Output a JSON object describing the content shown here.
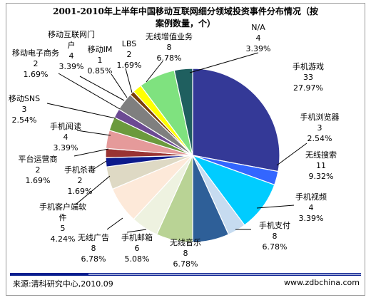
{
  "chart_data": {
    "type": "pie",
    "title_lines": [
      "2001-2010年上半年中国移动互联网细分领域投资事件分布情况（按",
      "案例数量，个）"
    ],
    "slices": [
      {
        "name": "手机游戏",
        "value": 33,
        "percent": "27.97%",
        "color": "#343997"
      },
      {
        "name": "手机浏览器",
        "value": 3,
        "percent": "2.54%",
        "color": "#3366ff"
      },
      {
        "name": "无线搜索",
        "value": 11,
        "percent": "9.32%",
        "color": "#00ccff"
      },
      {
        "name": "手机视频",
        "value": 4,
        "percent": "3.39%",
        "color": "#c6dbf0"
      },
      {
        "name": "手机支付",
        "value": 8,
        "percent": "6.78%",
        "color": "#2e5f98"
      },
      {
        "name": "无线音乐",
        "value": 8,
        "percent": "6.78%",
        "color": "#b9d395"
      },
      {
        "name": "手机邮箱",
        "value": 6,
        "percent": "5.08%",
        "color": "#eef2e0"
      },
      {
        "name": "无线广告",
        "value": 8,
        "percent": "6.78%",
        "color": "#fde9d9"
      },
      {
        "name": "手机客户端软件",
        "value": 5,
        "percent": "4.24%",
        "color": "#ded9c4"
      },
      {
        "name": "手机杀毒",
        "value": 2,
        "percent": "1.69%",
        "color": "#0c1a8c"
      },
      {
        "name": "平台运营商",
        "value": 2,
        "percent": "1.69%",
        "color": "#993333"
      },
      {
        "name": "手机阅读",
        "value": 4,
        "percent": "3.39%",
        "color": "#e59a9a"
      },
      {
        "name": "移动SNS",
        "value": 3,
        "percent": "2.54%",
        "color": "#6b9a3d"
      },
      {
        "name": "移动电子商务",
        "value": 2,
        "percent": "1.69%",
        "color": "#6c4a93"
      },
      {
        "name": "移动互联网门户",
        "value": 4,
        "percent": "3.39%",
        "color": "#4d4d8a"
      },
      {
        "name": "移动IM",
        "value": 1,
        "percent": "0.85%",
        "color": "#7a3e0a"
      },
      {
        "name": "LBS",
        "value": 2,
        "percent": "1.69%",
        "color": "#7f7f7f"
      },
      {
        "name": "无线增值业务",
        "value": 8,
        "percent": "6.78%",
        "color": "#ffff00"
      },
      {
        "name": "N/A",
        "value": 4,
        "percent": "3.39%",
        "color": "#7fe27f"
      }
    ],
    "slice_colors_override": {
      "无线增值业务": "#7fe27f",
      "N/A": "#1f5f5f",
      "LBS_extra": "#ffff00"
    }
  },
  "footer": {
    "source": "来源:清科研究中心,2010.09",
    "site": "www.zdbchina.com"
  }
}
